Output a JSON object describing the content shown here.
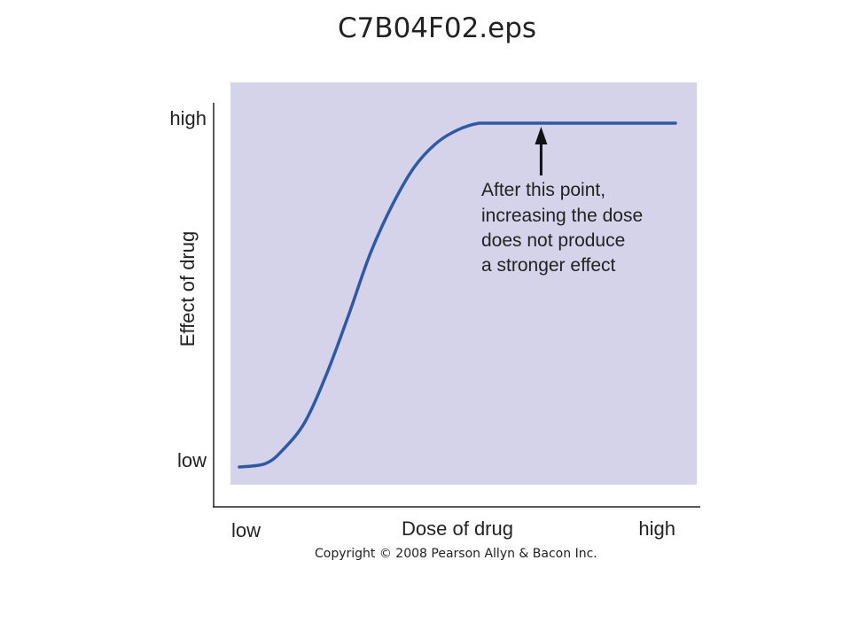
{
  "title": "C7B04F02.eps",
  "copyright": "Copyright © 2008 Pearson Allyn & Bacon Inc.",
  "colors": {
    "panel": "#d4d3ea",
    "curve": "#2e59a8",
    "axis": "#222222"
  },
  "chart_data": {
    "type": "line",
    "title": "C7B04F02.eps",
    "xlabel": "Dose of drug",
    "ylabel": "Effect of drug",
    "x_ticks": [
      "low",
      "high"
    ],
    "y_ticks": [
      "low",
      "high"
    ],
    "xlim": [
      0,
      1
    ],
    "ylim": [
      0,
      1
    ],
    "grid": false,
    "series": [
      {
        "x": [
          0.0,
          0.06,
          0.1,
          0.15,
          0.2,
          0.25,
          0.3,
          0.35,
          0.4,
          0.45,
          0.5,
          0.55,
          0.6,
          0.65,
          0.7,
          1.0
        ],
        "y": [
          0.0,
          0.01,
          0.05,
          0.13,
          0.27,
          0.44,
          0.62,
          0.76,
          0.87,
          0.94,
          0.98,
          1.0,
          1.0,
          1.0,
          1.0,
          1.0
        ]
      }
    ],
    "annotation": {
      "text": [
        "After this point,",
        "increasing the dose",
        "does not produce",
        "a stronger effect"
      ],
      "x": 0.7,
      "y": 1.0
    }
  }
}
